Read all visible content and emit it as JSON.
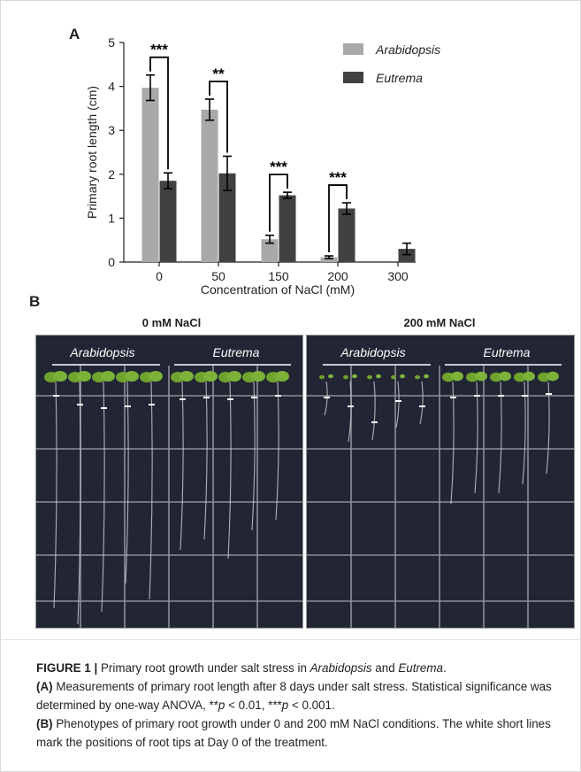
{
  "panel_a_letter": "A",
  "panel_b_letter": "B",
  "chart_data": {
    "type": "bar",
    "categories": [
      "0",
      "50",
      "150",
      "200",
      "300"
    ],
    "series": [
      {
        "name": "Arabidopsis",
        "values": [
          3.97,
          3.47,
          0.52,
          0.11,
          0.0
        ],
        "errors": [
          0.29,
          0.24,
          0.09,
          0.03,
          0.0
        ],
        "color": "#a9a9a9"
      },
      {
        "name": "Eutrema",
        "values": [
          1.85,
          2.02,
          1.52,
          1.22,
          0.3
        ],
        "errors": [
          0.18,
          0.39,
          0.07,
          0.13,
          0.13
        ],
        "color": "#414141"
      }
    ],
    "ylabel": "Primary root length (cm)",
    "xlabel": "Concentration of NaCl (mM)",
    "ylim": [
      0,
      5
    ],
    "yticks": [
      "0",
      "1",
      "2",
      "3",
      "4",
      "5"
    ],
    "legend_position": "top-right",
    "significance": [
      "***",
      "**",
      "***",
      "***",
      ""
    ]
  },
  "photos": {
    "left_title": "0 mM NaCl",
    "right_title": "200 mM NaCl",
    "label_arabidopsis": "Arabidopsis",
    "label_eutrema": "Eutrema"
  },
  "caption": {
    "figure_label": "FIGURE 1 |",
    "line1_text": " Primary root growth under salt stress in ",
    "line1_italic1": "Arabidopsis",
    "line1_and": " and ",
    "line1_italic2": "Eutrema",
    "line1_end": ".",
    "part_a_label": "(A)",
    "part_a_text": " Measurements of primary root length after 8 days under salt stress. Statistical significance was determined by one-way ANOVA, **",
    "p_symbol": "p",
    "p1_value": " < 0.01, ***",
    "p2_value": " < 0.001.",
    "part_b_label": "(B)",
    "part_b_text": " Phenotypes of primary root growth under 0 and 200 mM NaCl conditions. The white short lines mark the positions of root tips at Day 0 of the treatment."
  }
}
